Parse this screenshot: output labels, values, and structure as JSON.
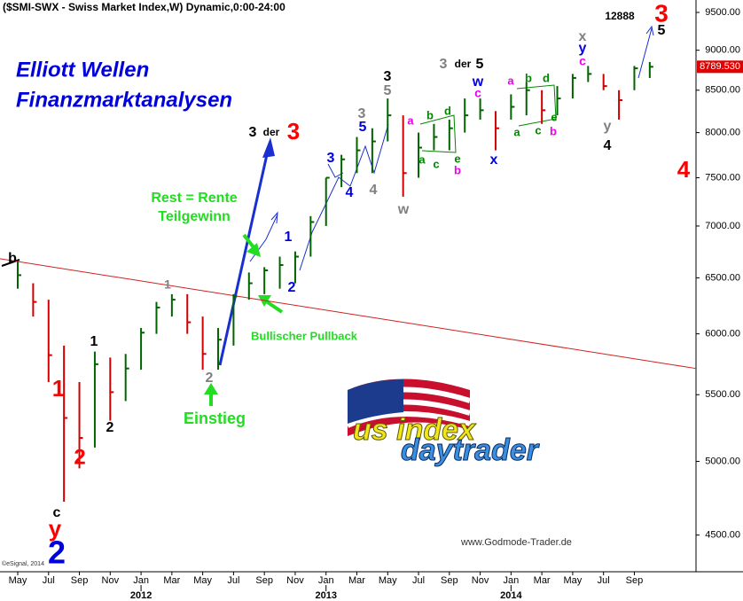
{
  "chart_data": {
    "type": "ohlc",
    "title": "($SMI-SWX - Swiss Market Index,W) Dynamic,0:00-24:00",
    "subtitle": [
      "Elliott Wellen",
      "Finanzmarktanalysen"
    ],
    "x": [
      0,
      1,
      2,
      3,
      4,
      5,
      6,
      7,
      8,
      9,
      10,
      11,
      12,
      13,
      14,
      15,
      16,
      17,
      18,
      19,
      20,
      21,
      22,
      23,
      24,
      25,
      26,
      27,
      28,
      29,
      30,
      31,
      32,
      33,
      34,
      35,
      36,
      37,
      38,
      39,
      40,
      41
    ],
    "high": [
      6650,
      6450,
      6300,
      5900,
      5600,
      5850,
      5800,
      5830,
      6050,
      6280,
      6350,
      6350,
      6150,
      6050,
      6350,
      6550,
      6600,
      6700,
      6750,
      7100,
      7500,
      7750,
      7950,
      8050,
      8400,
      8200,
      8000,
      8100,
      8150,
      8400,
      8400,
      8250,
      8450,
      8600,
      8500,
      8550,
      8700,
      8800,
      8700,
      8500,
      8800,
      8850
    ],
    "low": [
      6400,
      6150,
      5600,
      4720,
      4950,
      5100,
      5300,
      5450,
      5700,
      6000,
      6150,
      6000,
      5700,
      5700,
      5900,
      6300,
      6350,
      6400,
      6450,
      6700,
      7000,
      7400,
      7550,
      7550,
      7900,
      7300,
      7500,
      7800,
      7800,
      8000,
      8150,
      7800,
      8150,
      8200,
      8100,
      8200,
      8400,
      8600,
      8500,
      8150,
      8500,
      8650
    ],
    "close": [
      6525,
      6280,
      5820,
      5320,
      5170,
      5745,
      5520,
      5710,
      6010,
      6230,
      6300,
      6100,
      5830,
      5950,
      6330,
      6450,
      6570,
      6620,
      6700,
      7040,
      7500,
      7700,
      7800,
      7900,
      8200,
      7550,
      7830,
      7950,
      8050,
      8200,
      8260,
      8050,
      8300,
      8500,
      8260,
      8400,
      8650,
      8700,
      8550,
      8380,
      8770,
      8789.53
    ],
    "up_color": "#006400",
    "down_color": "#d00000",
    "last": {
      "value": 8789.53,
      "label": "8789.530"
    },
    "log_scale": true,
    "xlim": [
      -1.15,
      44
    ],
    "ylim": [
      4270,
      9670
    ],
    "yticks": [
      {
        "value": 4500,
        "label": "4500.00"
      },
      {
        "value": 5000,
        "label": "5000.00"
      },
      {
        "value": 5500,
        "label": "5500.00"
      },
      {
        "value": 6000,
        "label": "6000.00"
      },
      {
        "value": 6500,
        "label": "6500.00"
      },
      {
        "value": 7000,
        "label": "7000.00"
      },
      {
        "value": 7500,
        "label": "7500.00"
      },
      {
        "value": 8000,
        "label": "8000.00"
      },
      {
        "value": 8500,
        "label": "8500.00"
      },
      {
        "value": 9000,
        "label": "9000.00"
      },
      {
        "value": 9500,
        "label": "9500.00"
      }
    ],
    "xticks": [
      {
        "value": 0,
        "label": "May"
      },
      {
        "value": 2,
        "label": "Jul"
      },
      {
        "value": 4,
        "label": "Sep"
      },
      {
        "value": 6,
        "label": "Nov"
      },
      {
        "value": 8,
        "label": "Jan"
      },
      {
        "value": 10,
        "label": "Mar"
      },
      {
        "value": 12,
        "label": "May"
      },
      {
        "value": 14,
        "label": "Jul"
      },
      {
        "value": 16,
        "label": "Sep"
      },
      {
        "value": 18,
        "label": "Nov"
      },
      {
        "value": 20,
        "label": "Jan"
      },
      {
        "value": 22,
        "label": "Mar"
      },
      {
        "value": 24,
        "label": "May"
      },
      {
        "value": 26,
        "label": "Jul"
      },
      {
        "value": 28,
        "label": "Sep"
      },
      {
        "value": 30,
        "label": "Nov"
      },
      {
        "value": 32,
        "label": "Jan"
      },
      {
        "value": 34,
        "label": "Mar"
      },
      {
        "value": 36,
        "label": "May"
      },
      {
        "value": 38,
        "label": "Jul"
      },
      {
        "value": 40,
        "label": "Sep"
      }
    ],
    "year_ticks": [
      {
        "value": 8,
        "label": "2012"
      },
      {
        "value": 20,
        "label": "2013"
      },
      {
        "value": 32,
        "label": "2014"
      }
    ],
    "trendline": {
      "color": "#d02020",
      "x": [
        -1.15,
        44
      ],
      "values": [
        6680,
        5710
      ]
    },
    "annotations": [
      {
        "text": "b",
        "color": "#000000"
      },
      {
        "text": "1",
        "color": "#ff0000"
      },
      {
        "text": "2",
        "color": "#ff0000"
      },
      {
        "text": "1",
        "color": "#000000"
      },
      {
        "text": "2",
        "color": "#000000"
      },
      {
        "text": "c",
        "color": "#000000"
      },
      {
        "text": "y",
        "color": "#ff0000"
      },
      {
        "text": "2",
        "color": "#0000dd"
      },
      {
        "text": "1",
        "color": "#808080"
      },
      {
        "text": "2",
        "color": "#808080"
      },
      {
        "text": "Einstieg",
        "color": "#22dd22"
      },
      {
        "text": "Rest = Rente",
        "color": "#22dd22"
      },
      {
        "text": "Teilgewinn",
        "color": "#22dd22"
      },
      {
        "text": "Bullischer Pullback",
        "color": "#22dd22"
      },
      {
        "text": "3",
        "color": "#000000"
      },
      {
        "text": "der",
        "color": "#000000"
      },
      {
        "text": "3",
        "color": "#ff0000"
      },
      {
        "text": "1",
        "color": "#0000dd"
      },
      {
        "text": "2",
        "color": "#0000dd"
      },
      {
        "text": "3",
        "color": "#0000dd"
      },
      {
        "text": "4",
        "color": "#0000dd"
      },
      {
        "text": "5",
        "color": "#0000dd"
      },
      {
        "text": "3",
        "color": "#808080"
      },
      {
        "text": "4",
        "color": "#808080"
      },
      {
        "text": "w",
        "color": "#808080"
      },
      {
        "text": "3",
        "color": "#000000"
      },
      {
        "text": "5",
        "color": "#808080"
      },
      {
        "text": "3",
        "color": "#808080"
      },
      {
        "text": "der",
        "color": "#000000"
      },
      {
        "text": "5",
        "color": "#000000"
      },
      {
        "text": "w",
        "color": "#0000dd"
      },
      {
        "text": "c",
        "color": "#ee00ee"
      },
      {
        "text": "x",
        "color": "#0000dd"
      },
      {
        "text": "a",
        "color": "#ee00ee"
      },
      {
        "text": "b",
        "color": "#008800"
      },
      {
        "text": "d",
        "color": "#008800"
      },
      {
        "text": "a",
        "color": "#008800"
      },
      {
        "text": "c",
        "color": "#008800"
      },
      {
        "text": "e",
        "color": "#008800"
      },
      {
        "text": "b",
        "color": "#ee00ee"
      },
      {
        "text": "a",
        "color": "#ee00ee"
      },
      {
        "text": "b",
        "color": "#008800"
      },
      {
        "text": "d",
        "color": "#008800"
      },
      {
        "text": "a",
        "color": "#008800"
      },
      {
        "text": "c",
        "color": "#008800"
      },
      {
        "text": "e",
        "color": "#008800"
      },
      {
        "text": "b",
        "color": "#ee00ee"
      },
      {
        "text": "x",
        "color": "#808080"
      },
      {
        "text": "y",
        "color": "#0000dd"
      },
      {
        "text": "c",
        "color": "#ee00ee"
      },
      {
        "text": "y",
        "color": "#808080"
      },
      {
        "text": "4",
        "color": "#000000"
      },
      {
        "text": "3",
        "color": "#ff0000"
      },
      {
        "text": "5",
        "color": "#000000"
      },
      {
        "text": "4",
        "color": "#ff0000"
      },
      {
        "text": "12888",
        "color": "#000000"
      }
    ],
    "logo": [
      "us index",
      "daytrader"
    ],
    "source": "www.Godmode-Trader.de",
    "copyright": "©eSignal, 2014"
  }
}
